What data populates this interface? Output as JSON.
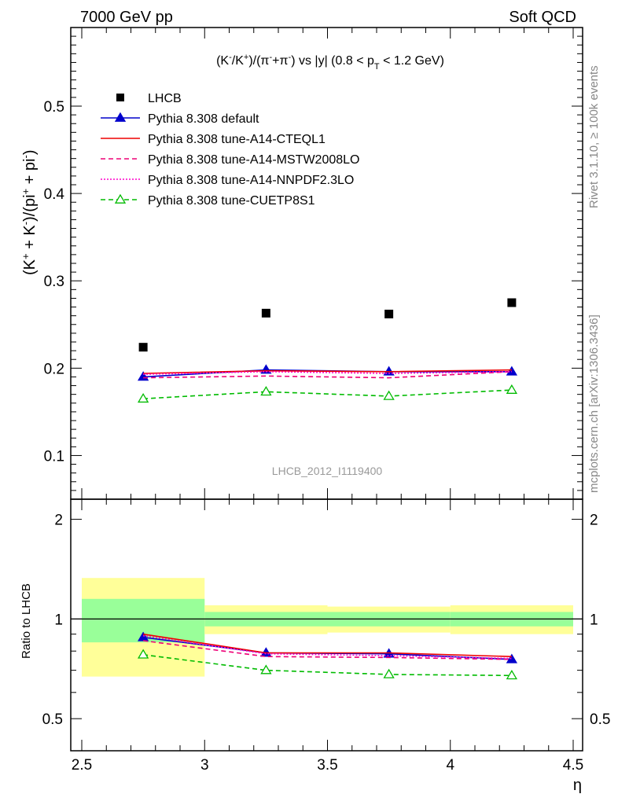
{
  "header": {
    "left": "7000 GeV pp",
    "right": "Soft QCD"
  },
  "side": {
    "rivet": "Rivet 3.1.10, ≥ 100k events",
    "mcplots": "mcplots.cern.ch [arXiv:1306.3436]"
  },
  "chart_data": {
    "type": "scatter",
    "title": "(K⁻/K⁺)/(π⁻+π⁻) vs |y| (0.8 < p_T < 1.2 GeV)",
    "analysis_label": "LHCB_2012_I1119400",
    "xlabel": "η",
    "ylabel": "(K⁺ + K⁻)/(pi⁺ + pi⁻)",
    "ratio_ylabel": "Ratio to LHCB",
    "xlim": [
      2.5,
      4.5
    ],
    "ylim": [
      0.05,
      0.59
    ],
    "ratio_ylim": [
      0.4,
      2.3
    ],
    "x_ticks": [
      "2.5",
      "3",
      "3.5",
      "4",
      "4.5"
    ],
    "y_ticks": [
      "0.1",
      "0.2",
      "0.3",
      "0.4",
      "0.5"
    ],
    "ratio_ticks": [
      "0.5",
      "1",
      "2"
    ],
    "legend_position": "top-left",
    "data": {
      "name": "LHCB",
      "x": [
        2.75,
        3.25,
        3.75,
        4.25
      ],
      "y": [
        0.224,
        0.263,
        0.262,
        0.275
      ],
      "xerr_bins": [
        [
          2.5,
          3.0
        ],
        [
          3.0,
          3.5
        ],
        [
          3.5,
          4.0
        ],
        [
          4.0,
          4.5
        ]
      ],
      "ratio_band_inner": [
        0.15,
        0.05,
        0.05,
        0.05
      ],
      "ratio_band_outer": [
        0.33,
        0.1,
        0.09,
        0.1
      ]
    },
    "series": [
      {
        "name": "Pythia 8.308 default",
        "color": "#0000cc",
        "style": "solid",
        "marker": "triangle-filled",
        "x": [
          2.75,
          3.25,
          3.75,
          4.25
        ],
        "y": [
          0.19,
          0.198,
          0.196,
          0.196
        ],
        "ratio": [
          0.88,
          0.79,
          0.785,
          0.755
        ]
      },
      {
        "name": "Pythia 8.308 tune-A14-CTEQL1",
        "color": "#ee0000",
        "style": "solid",
        "marker": "none",
        "x": [
          2.75,
          3.25,
          3.75,
          4.25
        ],
        "y": [
          0.194,
          0.197,
          0.196,
          0.198
        ],
        "ratio": [
          0.9,
          0.79,
          0.79,
          0.77
        ]
      },
      {
        "name": "Pythia 8.308 tune-A14-MSTW2008LO",
        "color": "#ee0077",
        "style": "dashed",
        "marker": "none",
        "x": [
          2.75,
          3.25,
          3.75,
          4.25
        ],
        "y": [
          0.189,
          0.191,
          0.189,
          0.196
        ],
        "ratio": [
          0.86,
          0.77,
          0.765,
          0.755
        ]
      },
      {
        "name": "Pythia 8.308 tune-A14-NNPDF2.3LO",
        "color": "#ff00cc",
        "style": "dotted",
        "marker": "none",
        "x": [
          2.75,
          3.25,
          3.75,
          4.25
        ],
        "y": [
          0.193,
          0.196,
          0.194,
          0.196
        ],
        "ratio": [
          0.89,
          0.785,
          0.775,
          0.76
        ]
      },
      {
        "name": "Pythia 8.308 tune-CUETP8S1",
        "color": "#00bb00",
        "style": "dashed",
        "marker": "triangle-open",
        "x": [
          2.75,
          3.25,
          3.75,
          4.25
        ],
        "y": [
          0.165,
          0.173,
          0.168,
          0.175
        ],
        "ratio": [
          0.78,
          0.7,
          0.68,
          0.675
        ]
      }
    ]
  }
}
